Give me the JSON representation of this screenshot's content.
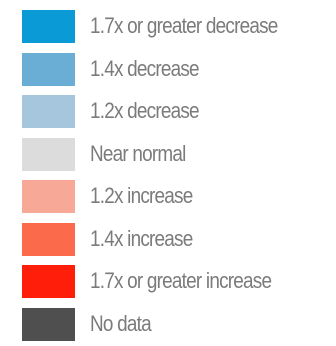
{
  "legend": {
    "items": [
      {
        "label": "1.7x or greater decrease",
        "color": "#0a9ad6"
      },
      {
        "label": "1.4x decrease",
        "color": "#6aaed6"
      },
      {
        "label": "1.2x decrease",
        "color": "#a6c6de"
      },
      {
        "label": "Near normal",
        "color": "#dcdcdc"
      },
      {
        "label": "1.2x increase",
        "color": "#f7a897"
      },
      {
        "label": "1.4x increase",
        "color": "#fb6a4a"
      },
      {
        "label": "1.7x or greater increase",
        "color": "#fe1e0a"
      },
      {
        "label": "No data",
        "color": "#4f4f4f"
      }
    ]
  }
}
